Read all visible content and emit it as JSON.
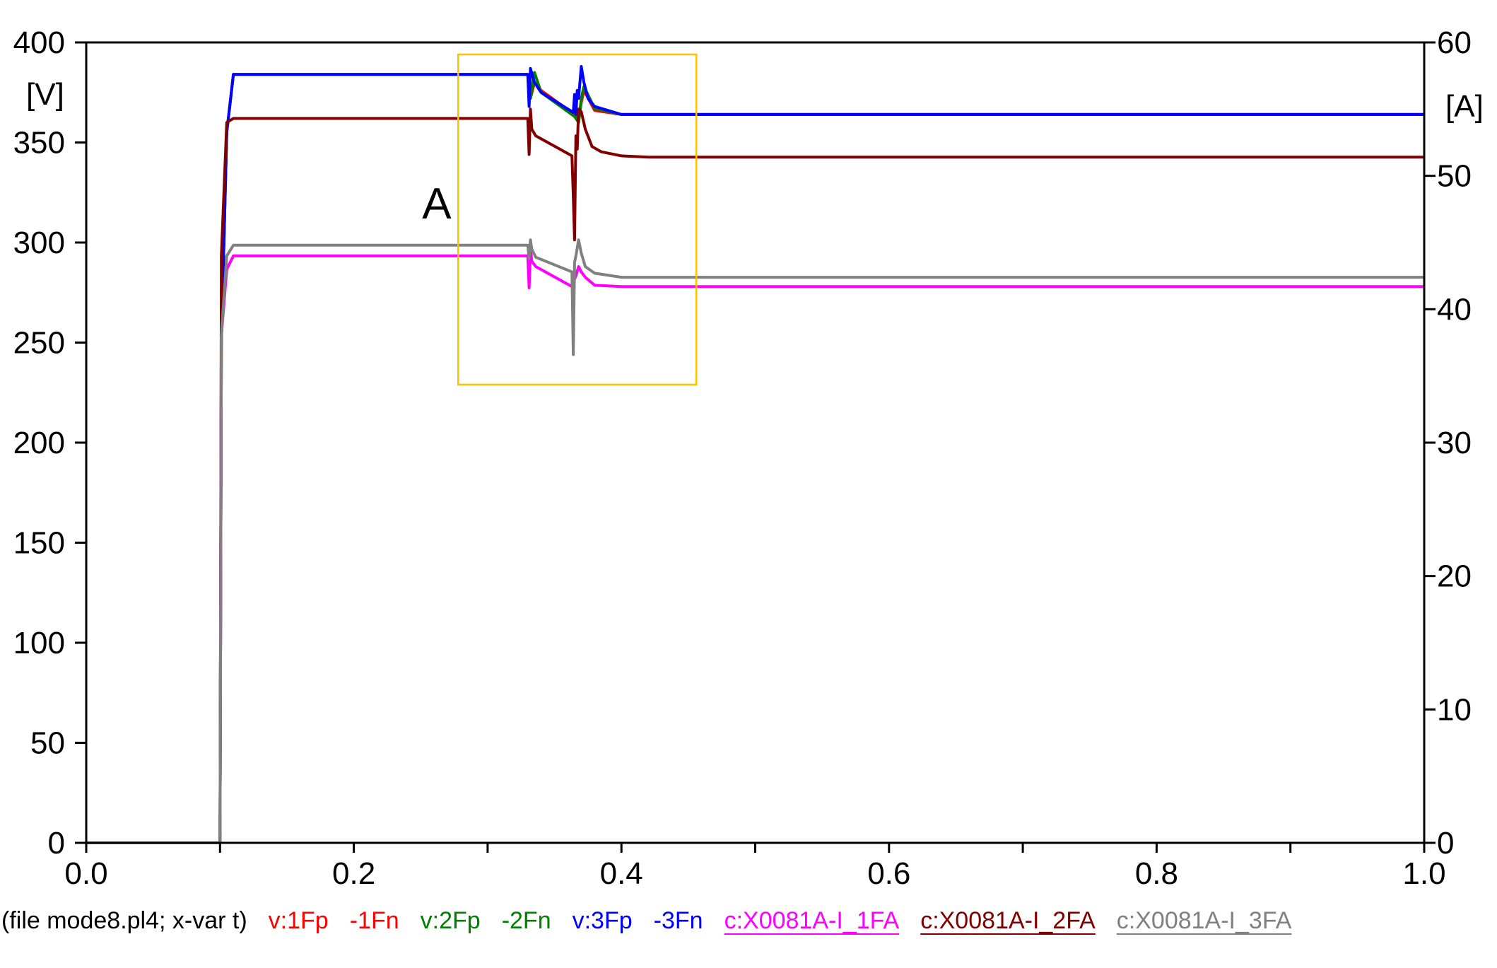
{
  "chart_data": {
    "type": "line",
    "title": "",
    "xlabel": "",
    "ylabel": "[V]",
    "y2label": "[A]",
    "xlim": [
      0.0,
      1.0
    ],
    "ylim": [
      0,
      400
    ],
    "y2lim": [
      0,
      60
    ],
    "grid": false,
    "x_ticks": [
      "0.0",
      "0.2",
      "0.4",
      "0.6",
      "0.8",
      "1.0"
    ],
    "y_ticks": [
      "0",
      "50",
      "100",
      "150",
      "200",
      "250",
      "300",
      "350",
      "400"
    ],
    "y2_ticks": [
      "0",
      "10",
      "20",
      "30",
      "40",
      "50",
      "60"
    ],
    "legend_prefix": "(file mode8.pl4; x-var t)",
    "legend_position": "bottom",
    "legend": [
      {
        "label": "v:1Fp",
        "color": "#ff0000",
        "underline": false
      },
      {
        "label": "-1Fn",
        "color": "#ff0000",
        "underline": false
      },
      {
        "label": "v:2Fp",
        "color": "#008000",
        "underline": false
      },
      {
        "label": "-2Fn",
        "color": "#008000",
        "underline": false
      },
      {
        "label": "v:3Fp",
        "color": "#0000ff",
        "underline": false
      },
      {
        "label": "-3Fn",
        "color": "#0000ff",
        "underline": false
      },
      {
        "label": "c:X0081A-I_1FA",
        "color": "#ff00ff",
        "underline": true
      },
      {
        "label": "c:X0081A-I_2FA",
        "color": "#800000",
        "underline": true
      },
      {
        "label": "c:X0081A-I_3FA",
        "color": "#808080",
        "underline": true
      }
    ],
    "series": [
      {
        "color": "#ff0000",
        "axis": "left",
        "x": [
          0,
          0.1,
          0.101,
          0.105,
          0.11,
          0.33,
          0.332,
          0.335,
          0.34,
          0.365,
          0.368,
          0.37,
          0.372,
          0.38,
          0.4,
          0.45,
          1.0
        ],
        "y": [
          0,
          0,
          250,
          355,
          384,
          384,
          372,
          380,
          376,
          364,
          360,
          370,
          376,
          366,
          364,
          364,
          364
        ]
      },
      {
        "color": "#008000",
        "axis": "left",
        "x": [
          0,
          0.1,
          0.101,
          0.105,
          0.11,
          0.33,
          0.332,
          0.335,
          0.34,
          0.365,
          0.368,
          0.37,
          0.372,
          0.38,
          0.4,
          0.45,
          1.0
        ],
        "y": [
          0,
          0,
          250,
          355,
          384,
          384,
          372,
          385,
          375,
          363,
          360,
          372,
          378,
          367,
          364,
          364,
          364
        ]
      },
      {
        "color": "#0000ff",
        "axis": "left",
        "x": [
          0,
          0.1,
          0.101,
          0.105,
          0.11,
          0.33,
          0.331,
          0.332,
          0.335,
          0.34,
          0.364,
          0.365,
          0.366,
          0.367,
          0.368,
          0.37,
          0.372,
          0.375,
          0.38,
          0.4,
          0.45,
          1.0
        ],
        "y": [
          0,
          0,
          250,
          355,
          384,
          384,
          368,
          387,
          380,
          375,
          365,
          374,
          364,
          376,
          372,
          388,
          380,
          372,
          368,
          364,
          364,
          364
        ]
      },
      {
        "color": "#800000",
        "axis": "right",
        "x": [
          0,
          0.1,
          0.101,
          0.105,
          0.11,
          0.33,
          0.331,
          0.332,
          0.333,
          0.336,
          0.363,
          0.364,
          0.365,
          0.366,
          0.367,
          0.368,
          0.37,
          0.373,
          0.378,
          0.385,
          0.4,
          0.42,
          0.45,
          1.0
        ],
        "y": [
          0,
          0,
          44,
          54,
          54.3,
          54.3,
          51.6,
          55.0,
          53.5,
          53.0,
          51.5,
          48.5,
          45.2,
          53.0,
          52.0,
          55.0,
          54.8,
          53.5,
          52.2,
          51.8,
          51.5,
          51.4,
          51.4,
          51.4
        ]
      },
      {
        "color": "#ff00ff",
        "axis": "right",
        "x": [
          0,
          0.1,
          0.101,
          0.105,
          0.11,
          0.33,
          0.331,
          0.332,
          0.333,
          0.336,
          0.363,
          0.364,
          0.366,
          0.368,
          0.37,
          0.373,
          0.38,
          0.4,
          0.45,
          1.0
        ],
        "y": [
          0,
          0,
          38,
          43.0,
          44.0,
          44.0,
          41.6,
          44.5,
          43.6,
          43.2,
          41.7,
          42.0,
          42.5,
          43.2,
          42.8,
          42.4,
          41.8,
          41.7,
          41.7,
          41.7
        ]
      },
      {
        "color": "#808080",
        "axis": "right",
        "x": [
          0,
          0.1,
          0.101,
          0.105,
          0.11,
          0.33,
          0.331,
          0.332,
          0.333,
          0.336,
          0.363,
          0.364,
          0.365,
          0.366,
          0.368,
          0.37,
          0.373,
          0.38,
          0.4,
          0.45,
          1.0
        ],
        "y": [
          0,
          0,
          38,
          44.0,
          44.8,
          44.8,
          43.8,
          45.2,
          44.5,
          43.9,
          42.8,
          36.6,
          43.5,
          44.0,
          45.2,
          44.2,
          43.2,
          42.7,
          42.4,
          42.4,
          42.4
        ]
      }
    ],
    "annotations": [
      {
        "text": "A",
        "x": 0.262,
        "y": 312
      }
    ],
    "highlight_box": {
      "x": [
        0.278,
        0.456
      ],
      "y": [
        229,
        394
      ],
      "color": "#ffc000"
    }
  }
}
